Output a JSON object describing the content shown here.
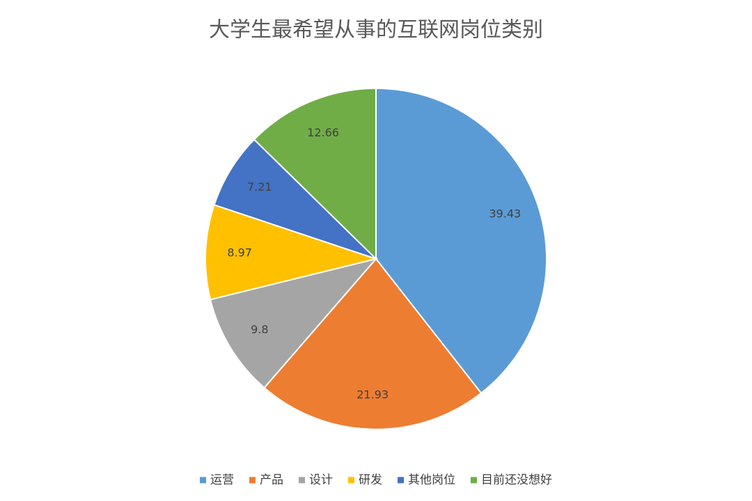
{
  "chart_data": {
    "type": "pie",
    "title": "大学生最希望从事的互联网岗位类别",
    "categories": [
      "运营",
      "产品",
      "设计",
      "研发",
      "其他岗位",
      "目前还没想好"
    ],
    "values": [
      39.43,
      21.93,
      9.8,
      8.97,
      7.21,
      12.66
    ],
    "colors": [
      "#5b9bd5",
      "#ed7d31",
      "#a5a5a5",
      "#ffc000",
      "#4472c4",
      "#70ad47"
    ],
    "legend": "bottom"
  }
}
